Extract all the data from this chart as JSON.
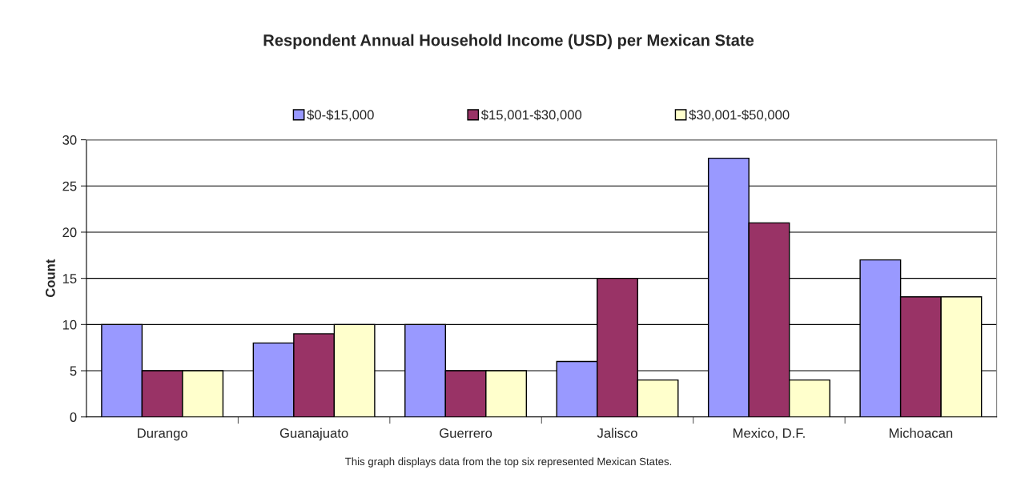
{
  "chart_data": {
    "type": "bar",
    "title": "Respondent Annual Household Income (USD) per Mexican State",
    "ylabel": "Count",
    "categories": [
      "Durango",
      "Guanajuato",
      "Guerrero",
      "Jalisco",
      "Mexico, D.F.",
      "Michoacan"
    ],
    "series": [
      {
        "name": "$0-$15,000",
        "color": "#9999ff",
        "values": [
          10,
          8,
          10,
          6,
          28,
          17
        ]
      },
      {
        "name": "$15,001-$30,000",
        "color": "#993366",
        "values": [
          5,
          9,
          5,
          15,
          21,
          13
        ]
      },
      {
        "name": "$30,001-$50,000",
        "color": "#ffffcc",
        "values": [
          5,
          10,
          5,
          4,
          4,
          13
        ]
      }
    ],
    "ylim": [
      0,
      30
    ],
    "yticks": [
      0,
      5,
      10,
      15,
      20,
      25,
      30
    ],
    "grid": "y",
    "legend": "top",
    "annotations": [
      "This graph displays data from the top six represented Mexican States."
    ]
  }
}
